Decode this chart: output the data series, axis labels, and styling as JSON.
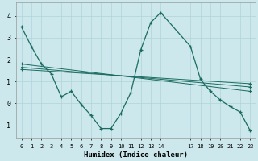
{
  "xlabel": "Humidex (Indice chaleur)",
  "bg_color": "#cce8ec",
  "grid_color": "#b0d4d8",
  "line_color": "#1a6b60",
  "xlim": [
    -0.5,
    23.5
  ],
  "ylim": [
    -1.6,
    4.6
  ],
  "yticks": [
    -1,
    0,
    1,
    2,
    3,
    4
  ],
  "xtick_positions": [
    0,
    1,
    2,
    3,
    4,
    5,
    6,
    7,
    8,
    9,
    10,
    11,
    12,
    13,
    14,
    17,
    18,
    19,
    20,
    21,
    22,
    23
  ],
  "xtick_labels": [
    "0",
    "1",
    "2",
    "3",
    "4",
    "5",
    "6",
    "7",
    "8",
    "9",
    "10",
    "11",
    "12",
    "13",
    "14",
    "17",
    "18",
    "19",
    "20",
    "21",
    "22",
    "23"
  ],
  "main_series": {
    "x": [
      0,
      1,
      2,
      3,
      4,
      5,
      6,
      7,
      8,
      9,
      10,
      11,
      12,
      13,
      14,
      17,
      18,
      19,
      20,
      21,
      22,
      23
    ],
    "y": [
      3.5,
      2.6,
      1.8,
      1.35,
      0.3,
      0.55,
      -0.05,
      -0.55,
      -1.15,
      -1.15,
      -0.45,
      0.5,
      2.45,
      3.7,
      4.15,
      2.6,
      1.1,
      0.55,
      0.15,
      -0.15,
      -0.4,
      -1.25
    ]
  },
  "reg_lines": [
    {
      "x": [
        0,
        23
      ],
      "y": [
        1.8,
        0.55
      ]
    },
    {
      "x": [
        0,
        23
      ],
      "y": [
        1.65,
        0.75
      ]
    },
    {
      "x": [
        0,
        23
      ],
      "y": [
        1.55,
        0.9
      ]
    }
  ]
}
